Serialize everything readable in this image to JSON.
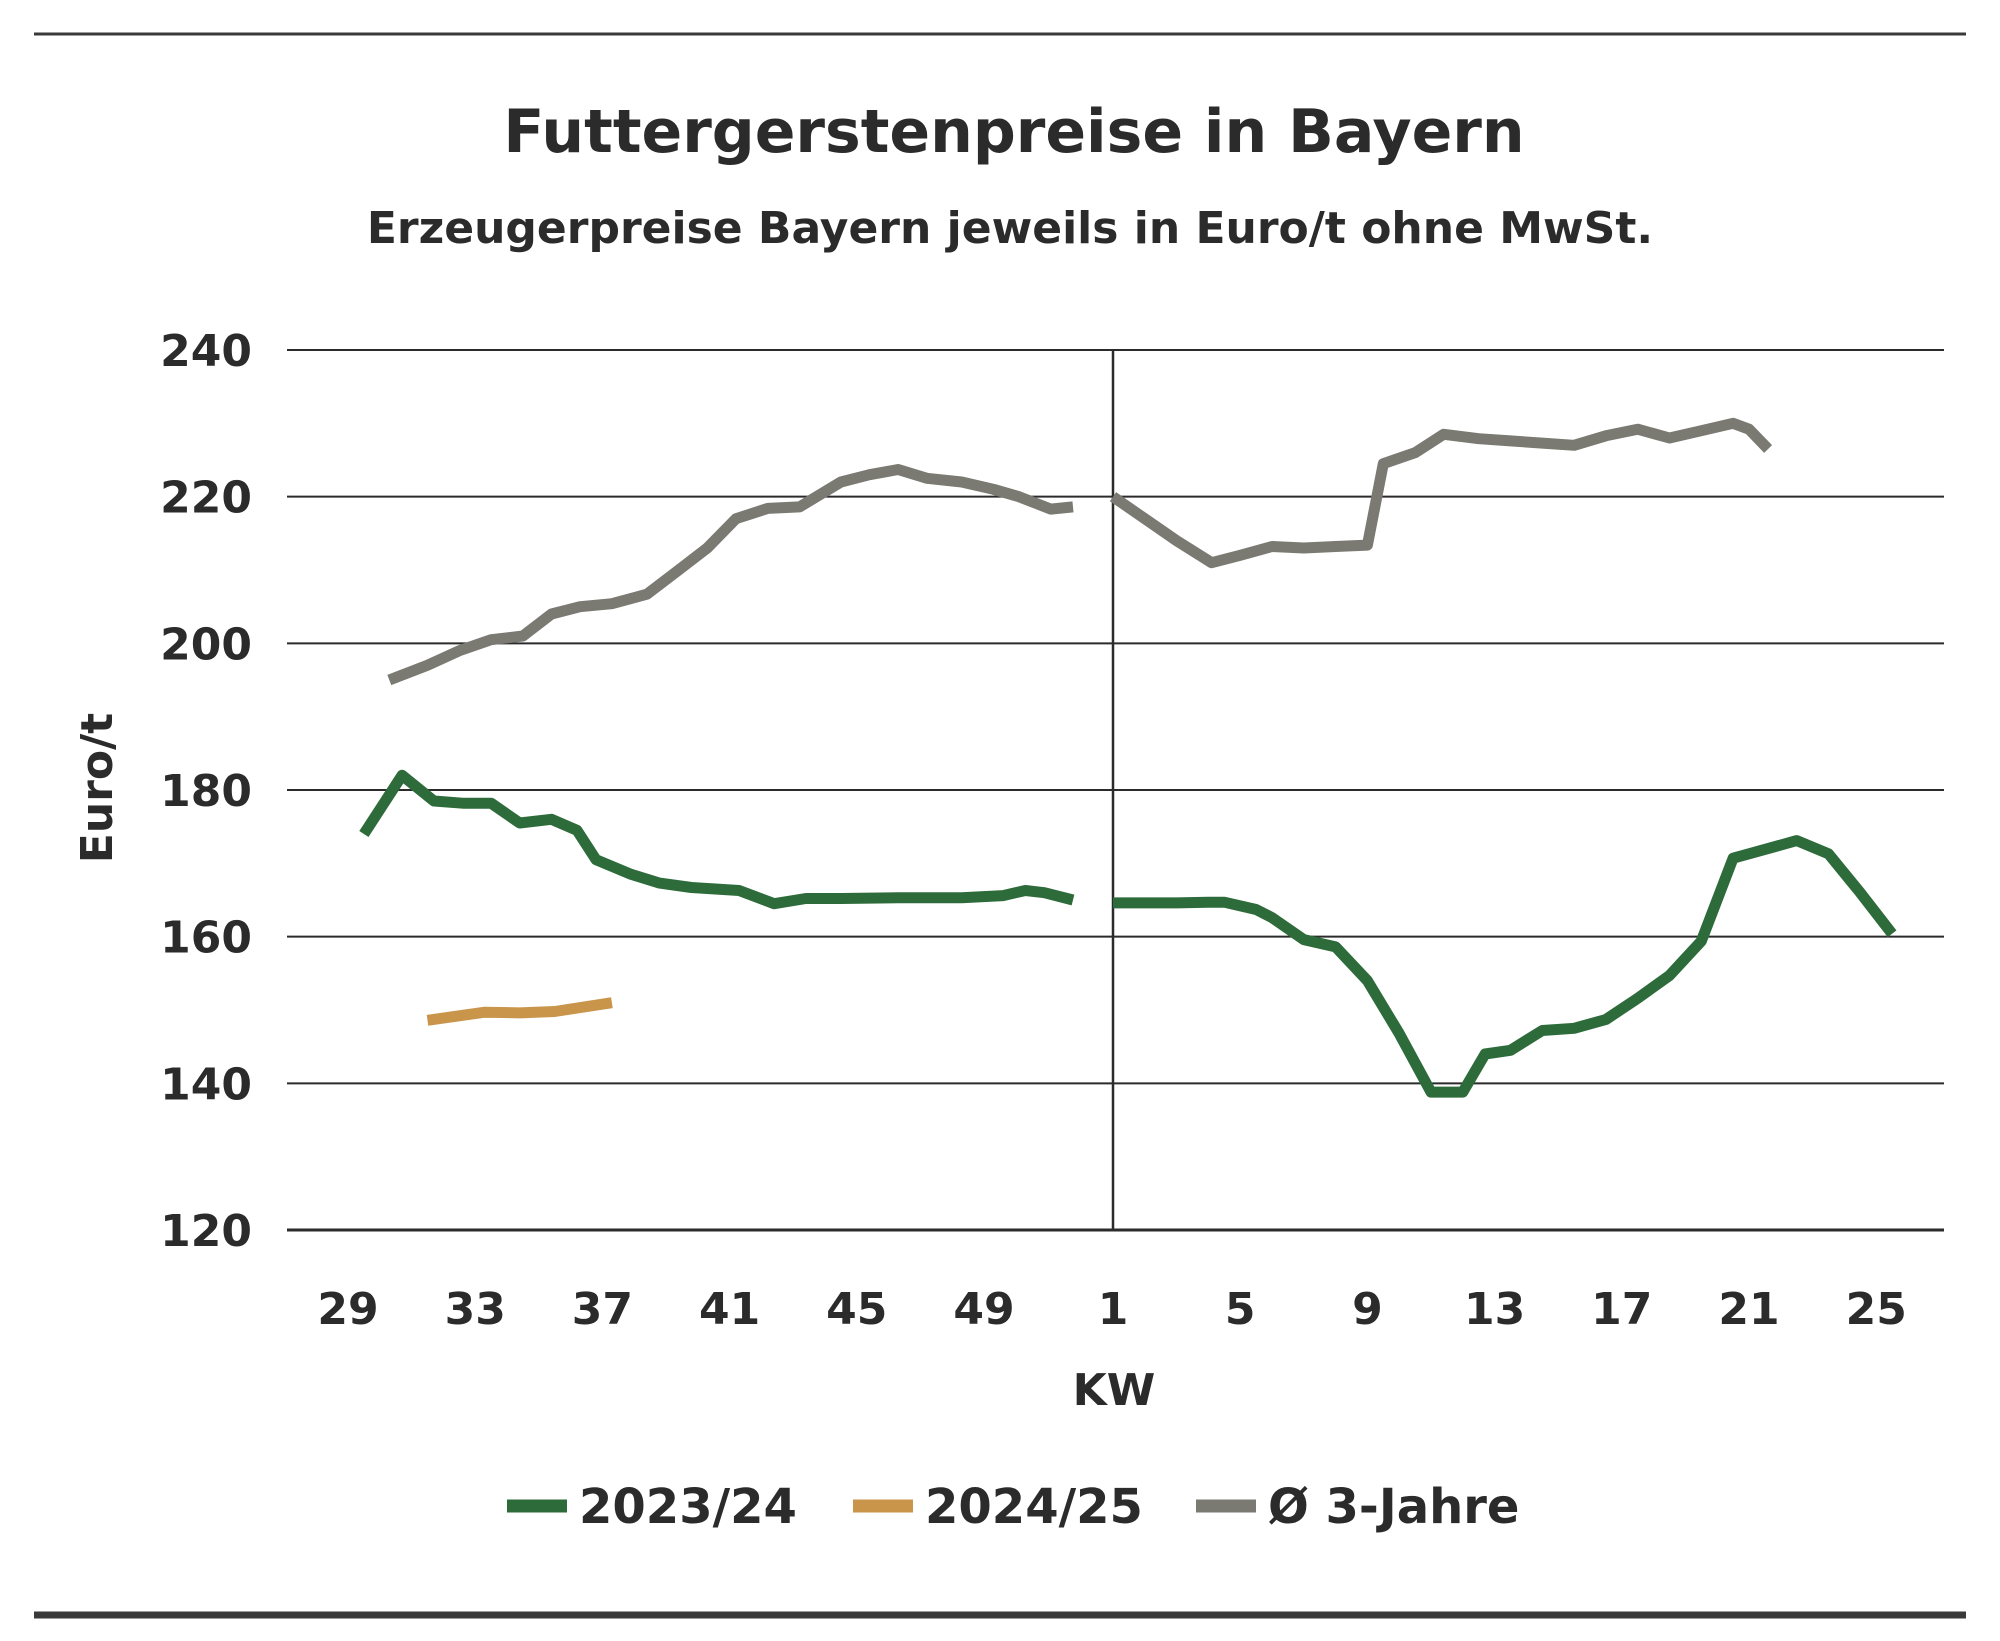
{
  "chart_data": {
    "type": "line",
    "title": "Futtergerstenpreise in Bayern",
    "subtitle": "Erzeugerpreise Bayern jeweils in Euro/t ohne MwSt.",
    "xlabel": "KW",
    "ylabel": "Euro/t",
    "ylim": [
      120,
      240
    ],
    "yticks": [
      120,
      140,
      160,
      180,
      200,
      220,
      240
    ],
    "grid": true,
    "legend_position": "bottom",
    "xtick_labels": [
      "29",
      "33",
      "37",
      "41",
      "45",
      "49",
      "1",
      "5",
      "9",
      "13",
      "17",
      "21",
      "25"
    ],
    "series": [
      {
        "name": "2023/24",
        "color": "#2e6b3b",
        "segments": [
          {
            "x": [
              29.5,
              30.7,
              31.7,
              32.6,
              33.5,
              34.4,
              35.4,
              36.2,
              36.8,
              37.9,
              38.8,
              39.8,
              41.3,
              42.4,
              43.4,
              44.5,
              46.3,
              48.3,
              49.6,
              50.3,
              50.9,
              51.8
            ],
            "y": [
              174,
              182,
              178.5,
              178.2,
              178.2,
              175.5,
              176,
              174.5,
              170.5,
              168.5,
              167.3,
              166.7,
              166.3,
              164.5,
              165.2,
              165.2,
              165.3,
              165.3,
              165.6,
              166.3,
              166,
              165
            ]
          },
          {
            "x": [
              1,
              2,
              3,
              4,
              4.5,
              5.5,
              6,
              7,
              8,
              9,
              10,
              11,
              11.6,
              12,
              12.7,
              13.5,
              14.5,
              15.5,
              16.5,
              17.5,
              18.5,
              19.5,
              20.5,
              21,
              22.5,
              23.5,
              24.5,
              25.5
            ],
            "y": [
              164.6,
              164.6,
              164.6,
              164.7,
              164.7,
              163.7,
              162.6,
              159.6,
              158.6,
              154,
              146.8,
              138.8,
              138.8,
              138.8,
              144,
              144.5,
              147.2,
              147.5,
              148.7,
              151.6,
              154.7,
              159.4,
              170.7,
              171.3,
              173.1,
              171.3,
              166,
              160.4
            ]
          }
        ]
      },
      {
        "name": "2024/25",
        "color": "#c9954a",
        "segments": [
          {
            "x": [
              31.5,
              33.3,
              34.4,
              35.5,
              37.3
            ],
            "y": [
              148.6,
              149.7,
              149.6,
              149.8,
              151
            ]
          }
        ]
      },
      {
        "name": "Ø 3-Jahre",
        "color": "#7a7a72",
        "segments": [
          {
            "x": [
              30.3,
              31.5,
              32.5,
              33.5,
              34.5,
              35.4,
              36.3,
              37.3,
              38.4,
              39.4,
              40.3,
              41.2,
              42.2,
              43.2,
              44.5,
              45.4,
              46.3,
              47.2,
              48.3,
              49.3,
              50.1,
              51.1,
              51.8
            ],
            "y": [
              195,
              197,
              199,
              200.5,
              201,
              204,
              205,
              205.4,
              206.7,
              210,
              213,
              217,
              218.4,
              218.6,
              222,
              223,
              223.7,
              222.5,
              222,
              221,
              220,
              218.3,
              218.6
            ]
          },
          {
            "x": [
              1,
              2,
              3,
              4.1,
              5,
              6,
              7,
              8,
              9,
              9.5,
              10.5,
              11.4,
              12.5,
              13.5,
              14.5,
              15.5,
              16.5,
              17.5,
              18.5,
              19.5,
              20.5,
              21,
              21.6
            ],
            "y": [
              220,
              217,
              214,
              211,
              212,
              213.2,
              213,
              213.2,
              213.4,
              224.5,
              226,
              228.5,
              227.9,
              227.6,
              227.3,
              227,
              228.3,
              229.2,
              228,
              229,
              230,
              229.2,
              226.5
            ]
          }
        ]
      }
    ]
  }
}
